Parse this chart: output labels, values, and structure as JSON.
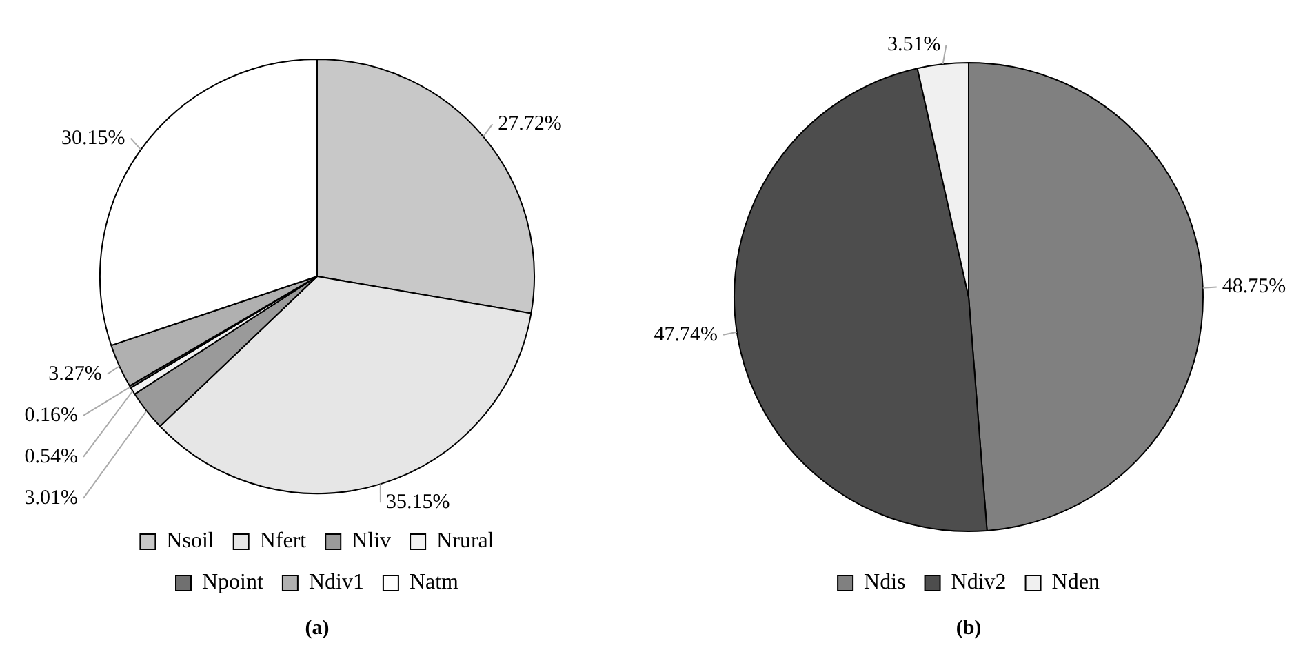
{
  "chart_data": [
    {
      "type": "pie",
      "categories": [
        "Nsoil",
        "Nfert",
        "Nliv",
        "Nrural",
        "Npoint",
        "Ndiv1",
        "Natm"
      ],
      "values": [
        27.72,
        35.15,
        3.01,
        0.54,
        0.16,
        3.27,
        30.15
      ],
      "value_labels": [
        "27.72%",
        "35.15%",
        "3.01%",
        "0.54%",
        "0.16%",
        "3.27%",
        "30.15%"
      ],
      "colors": [
        "#c8c8c8",
        "#e6e6e6",
        "#9a9a9a",
        "#f2f2f2",
        "#707070",
        "#b0b0b0",
        "#ffffff"
      ],
      "legend": "bottom",
      "annotations": [
        "(a)"
      ]
    },
    {
      "type": "pie",
      "categories": [
        "Ndis",
        "Ndiv2",
        "Nden"
      ],
      "values": [
        48.75,
        47.74,
        3.51
      ],
      "value_labels": [
        "48.75%",
        "47.74%",
        "3.51%"
      ],
      "colors": [
        "#808080",
        "#4d4d4d",
        "#f0f0f0"
      ],
      "legend": "bottom",
      "annotations": [
        "(b)"
      ]
    }
  ]
}
